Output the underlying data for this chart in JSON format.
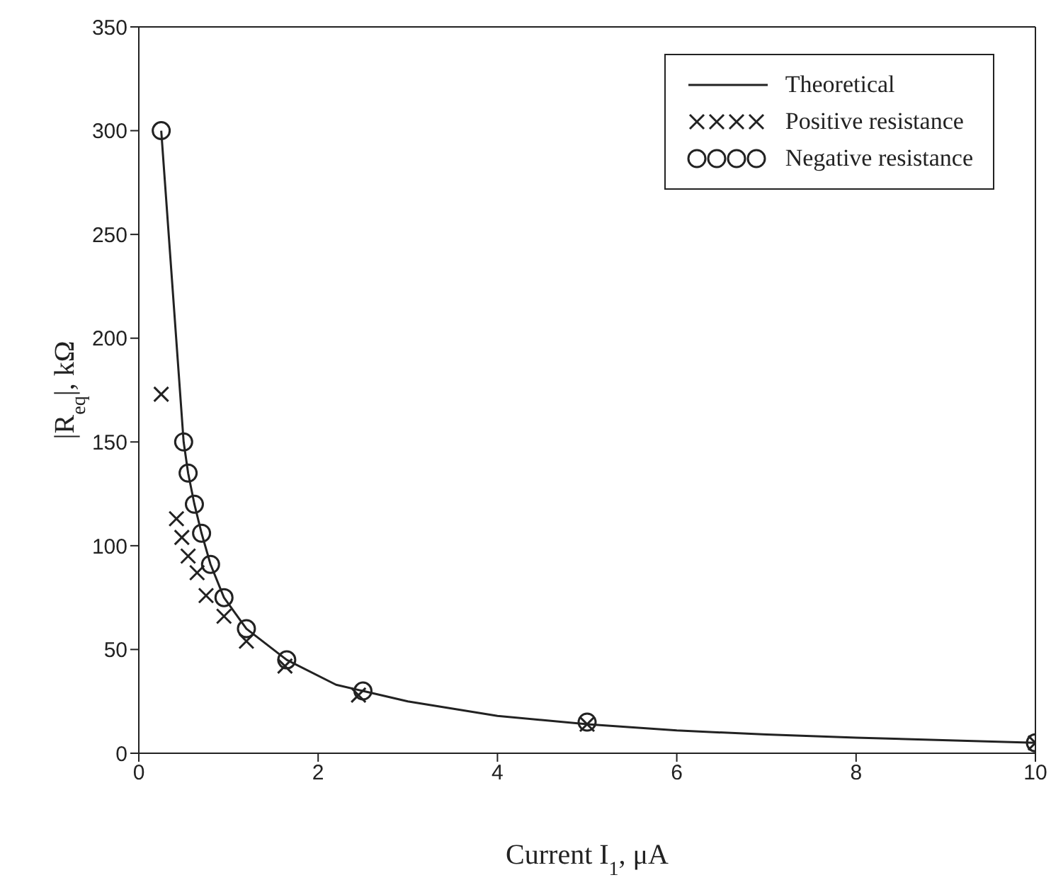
{
  "chart_data": {
    "type": "scatter",
    "xlabel": "Current I$_{1}$, μA",
    "ylabel": "|R$_{eq}$|, kΩ",
    "xlim": [
      0,
      10
    ],
    "xticks": [
      0,
      2,
      4,
      6,
      8,
      10
    ],
    "ylim": [
      0,
      350
    ],
    "yticks": [
      0,
      50,
      100,
      150,
      200,
      250,
      300,
      350
    ],
    "legend": "top right",
    "series": [
      {
        "name": "Theoretical",
        "type": "line",
        "color": "#222222",
        "marker": "none",
        "line_style": "solid",
        "x": [
          0.25,
          0.5,
          0.55,
          0.62,
          0.7,
          0.8,
          0.95,
          1.2,
          1.65,
          2.2,
          2.5,
          3,
          4,
          5,
          6,
          7,
          8,
          10
        ],
        "values": [
          300,
          150,
          135,
          120,
          106,
          91,
          75,
          60,
          45,
          33,
          30,
          25,
          18,
          14,
          11,
          9,
          7.5,
          5
        ]
      },
      {
        "name": "Positive resistance",
        "color": "#222222",
        "marker": "cross",
        "x": [
          0.25,
          0.42,
          0.48,
          0.55,
          0.65,
          0.75,
          0.95,
          1.2,
          1.63,
          2.45,
          5,
          10
        ],
        "values": [
          173,
          113,
          104,
          95,
          87,
          76,
          66,
          54,
          42,
          28,
          14,
          5
        ]
      },
      {
        "name": "Negative resistance",
        "color": "#222222",
        "marker": "circle",
        "x": [
          0.25,
          0.5,
          0.55,
          0.62,
          0.7,
          0.8,
          0.95,
          1.2,
          1.65,
          2.5,
          5,
          10
        ],
        "values": [
          300,
          150,
          135,
          120,
          106,
          91,
          75,
          60,
          45,
          30,
          15,
          5
        ]
      }
    ]
  }
}
